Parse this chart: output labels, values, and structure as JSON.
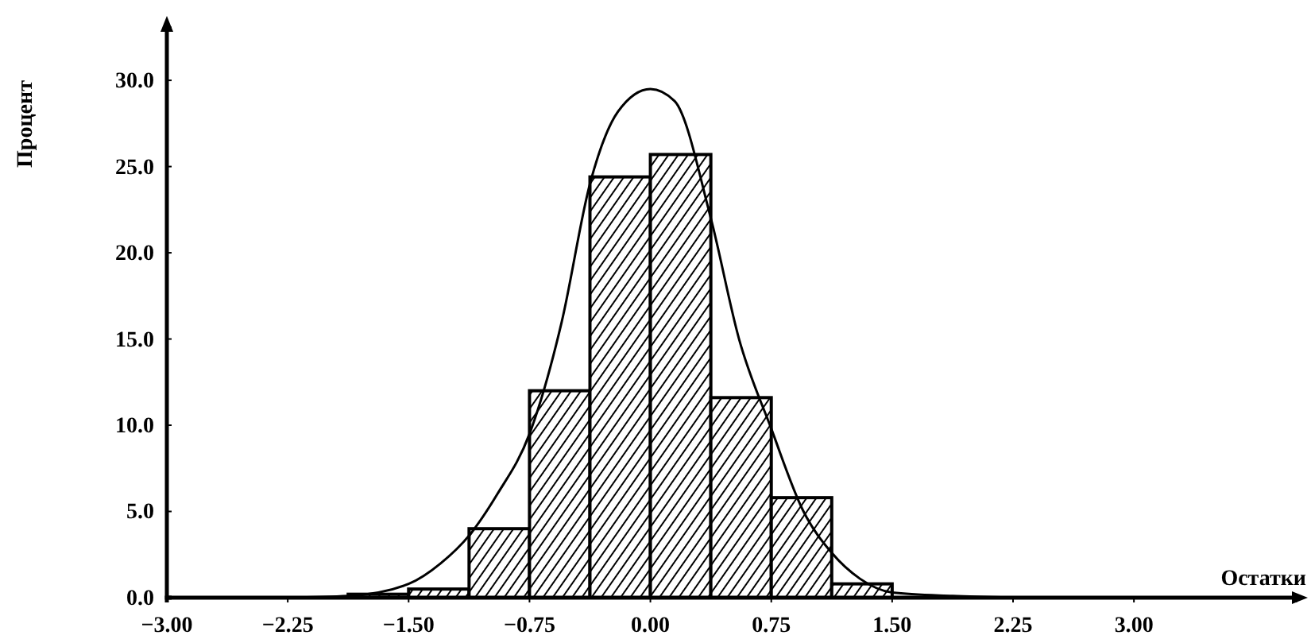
{
  "chart_data": {
    "type": "histogram",
    "xlabel": "Остатки",
    "ylabel": "Процент",
    "series": [
      {
        "color": "#000000",
        "bins": [
          -1.875,
          -1.5,
          -1.125,
          -0.75,
          -0.375,
          0,
          0.375,
          0.75,
          1.125,
          1.5
        ],
        "values": [
          0.2,
          0.5,
          4.0,
          12.0,
          24.4,
          25.7,
          11.6,
          5.8,
          0.8
        ]
      },
      {
        "type": "line",
        "color": "#000000",
        "x": [
          -2.25,
          -1.875,
          -1.5,
          -1.3,
          -1.125,
          -0.95,
          -0.75,
          -0.55,
          -0.375,
          -0.2,
          0,
          0.15,
          0.375,
          0.55,
          0.75,
          0.95,
          1.125,
          1.3,
          1.5,
          1.875,
          2.25
        ],
        "values": [
          0,
          0.1,
          0.8,
          2.0,
          3.6,
          6,
          9.5,
          16,
          24,
          28.2,
          29.5,
          28.8,
          22,
          15,
          9.8,
          5,
          2.6,
          1.1,
          0.3,
          0.1,
          0
        ]
      }
    ],
    "xlim": [
      -3,
      4
    ],
    "ylim": [
      0,
      33
    ],
    "xticks": [
      {
        "value": -3,
        "label": "−3.00"
      },
      {
        "value": -2.25,
        "label": "−2.25"
      },
      {
        "value": -1.5,
        "label": "−1.50"
      },
      {
        "value": -0.75,
        "label": "−0.75"
      },
      {
        "value": 0,
        "label": "0.00"
      },
      {
        "value": 0.75,
        "label": "0.75"
      },
      {
        "value": 1.5,
        "label": "1.50"
      },
      {
        "value": 2.25,
        "label": "2.25"
      },
      {
        "value": 3,
        "label": "3.00"
      }
    ],
    "yticks": [
      {
        "value": 0,
        "label": "0.0"
      },
      {
        "value": 5,
        "label": "5.0"
      },
      {
        "value": 10,
        "label": "10.0"
      },
      {
        "value": 15,
        "label": "15.0"
      },
      {
        "value": 20,
        "label": "20.0"
      },
      {
        "value": 25,
        "label": "25.0"
      },
      {
        "value": 30,
        "label": "30.0"
      }
    ]
  }
}
